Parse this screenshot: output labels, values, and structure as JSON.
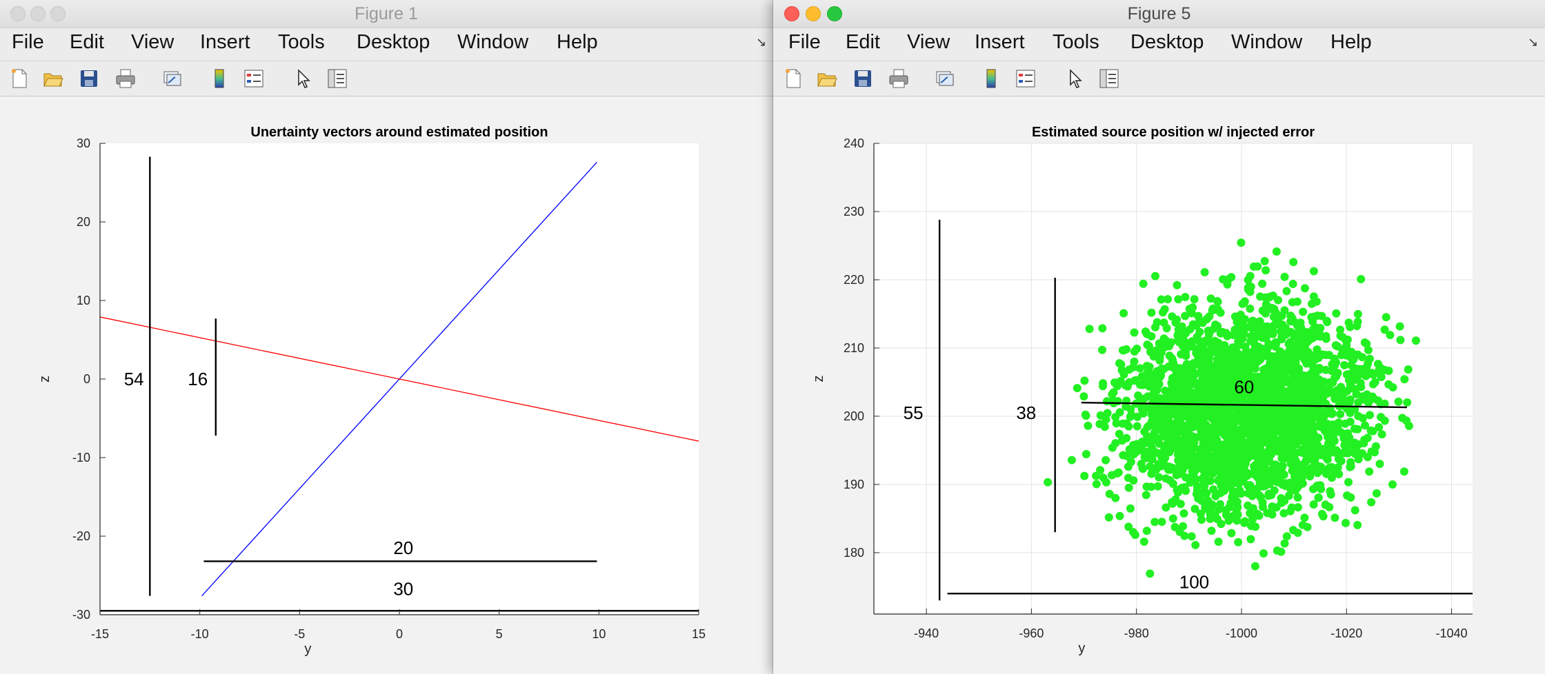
{
  "windows": [
    {
      "title": "Figure 1",
      "menu": [
        "File",
        "Edit",
        "View",
        "Insert",
        "Tools",
        "Desktop",
        "Window",
        "Help"
      ],
      "toolbar_icons": [
        "new-figure-icon",
        "open-file-icon",
        "save-icon",
        "print-icon",
        "link-plot-icon",
        "insert-colorbar-icon",
        "insert-legend-icon",
        "edit-plot-arrow-icon",
        "property-inspector-icon"
      ]
    },
    {
      "title": "Figure 5",
      "menu": [
        "File",
        "Edit",
        "View",
        "Insert",
        "Tools",
        "Desktop",
        "Window",
        "Help"
      ],
      "toolbar_icons": [
        "new-figure-icon",
        "open-file-icon",
        "save-icon",
        "print-icon",
        "link-plot-icon",
        "insert-colorbar-icon",
        "insert-legend-icon",
        "edit-plot-arrow-icon",
        "property-inspector-icon"
      ]
    }
  ],
  "chart_data": [
    {
      "type": "line",
      "title": "Unertainty vectors around estimated position",
      "xlabel": "y",
      "ylabel": "z",
      "xlim": [
        -15,
        15
      ],
      "ylim": [
        -30,
        30
      ],
      "xticks": [
        -15,
        -10,
        -5,
        0,
        5,
        10,
        15
      ],
      "yticks": [
        30,
        20,
        10,
        0,
        -10,
        -20,
        -30
      ],
      "grid": false,
      "series": [
        {
          "color": "#0000ff",
          "x": [
            -9.9,
            9.9
          ],
          "y": [
            -27.6,
            27.6
          ]
        },
        {
          "color": "#ff0000",
          "x": [
            -15,
            15
          ],
          "y": [
            7.9,
            -7.9
          ]
        }
      ],
      "annotations": [
        {
          "label": "54",
          "orientation": "vertical",
          "x": [
            -12.5,
            -12.5
          ],
          "y": [
            -27.6,
            28.3
          ],
          "label_at": [
            -13.3,
            0
          ]
        },
        {
          "label": "16",
          "orientation": "vertical",
          "x": [
            -9.2,
            -9.2
          ],
          "y": [
            -7.2,
            7.7
          ],
          "label_at": [
            -10.1,
            0
          ]
        },
        {
          "label": "20",
          "orientation": "horizontal",
          "x": [
            -9.8,
            9.9
          ],
          "y": [
            -23.2,
            -23.2
          ],
          "label_at": [
            0.2,
            -21.5
          ]
        },
        {
          "label": "30",
          "orientation": "horizontal",
          "x": [
            -15,
            15
          ],
          "y": [
            -29.5,
            -29.5
          ],
          "label_at": [
            0.2,
            -26.7
          ]
        }
      ]
    },
    {
      "type": "scatter",
      "title": "Estimated source position w/ injected error",
      "xlabel": "y",
      "ylabel": "z",
      "xlim": [
        -940,
        -1040
      ],
      "ylim": [
        170,
        240
      ],
      "axis_range": {
        "x": [
          -930,
          -1044
        ],
        "y": [
          171,
          240
        ]
      },
      "xticks": [
        -940,
        -960,
        -980,
        -1000,
        -1020,
        -1040
      ],
      "yticks": [
        240,
        230,
        220,
        210,
        200,
        190,
        180
      ],
      "grid": true,
      "points": {
        "color": "#22f022",
        "center": [
          -1000,
          201
        ],
        "spread": [
          13,
          8
        ]
      },
      "annotations": [
        {
          "label": "55",
          "orientation": "vertical",
          "x": [
            -942.5,
            -942.5
          ],
          "y": [
            173,
            228.8
          ],
          "label_at": [
            -937.5,
            200.5
          ]
        },
        {
          "label": "38",
          "orientation": "vertical",
          "x": [
            -964.5,
            -964.5
          ],
          "y": [
            183,
            220.3
          ],
          "label_at": [
            -959,
            200.5
          ]
        },
        {
          "label": "60",
          "orientation": "horizontal",
          "x": [
            -969.5,
            -1031.5
          ],
          "y": [
            202,
            201.3
          ],
          "label_at": [
            -1000.5,
            204.3
          ]
        },
        {
          "label": "100",
          "orientation": "horizontal",
          "x": [
            -944,
            -1044
          ],
          "y": [
            174,
            174
          ],
          "label_at": [
            -991,
            175.7
          ]
        }
      ]
    }
  ]
}
